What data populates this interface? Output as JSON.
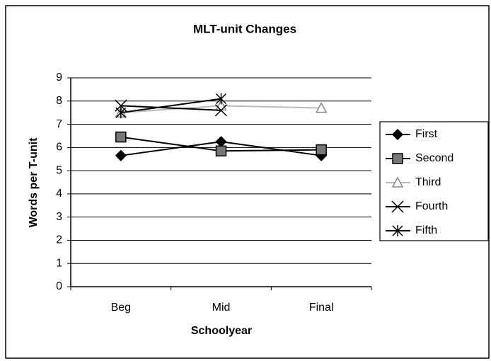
{
  "chart_data": {
    "type": "line",
    "title": "MLT-unit Changes",
    "x_label": "Schoolyear",
    "y_label": "Words per T-unit",
    "categories": [
      "Beg",
      "Mid",
      "Final"
    ],
    "series": [
      {
        "name": "First",
        "color": "#000000",
        "marker": "diamond",
        "values": [
          5.65,
          6.25,
          5.65
        ]
      },
      {
        "name": "Second",
        "color": "#000000",
        "marker": "square",
        "values": [
          6.45,
          5.85,
          5.9
        ]
      },
      {
        "name": "Third",
        "color": "#bbbbbb",
        "marker": "triangle",
        "values": [
          7.5,
          7.8,
          7.7
        ]
      },
      {
        "name": "Fourth",
        "color": "#000000",
        "marker": "x",
        "values": [
          7.8,
          7.6,
          null
        ]
      },
      {
        "name": "Fifth",
        "color": "#000000",
        "marker": "star",
        "values": [
          7.5,
          8.1,
          null
        ]
      }
    ],
    "ylim": [
      0,
      9
    ],
    "yticks": [
      0,
      1,
      2,
      3,
      4,
      5,
      6,
      7,
      8,
      9
    ],
    "grid": true,
    "legend": "right"
  }
}
